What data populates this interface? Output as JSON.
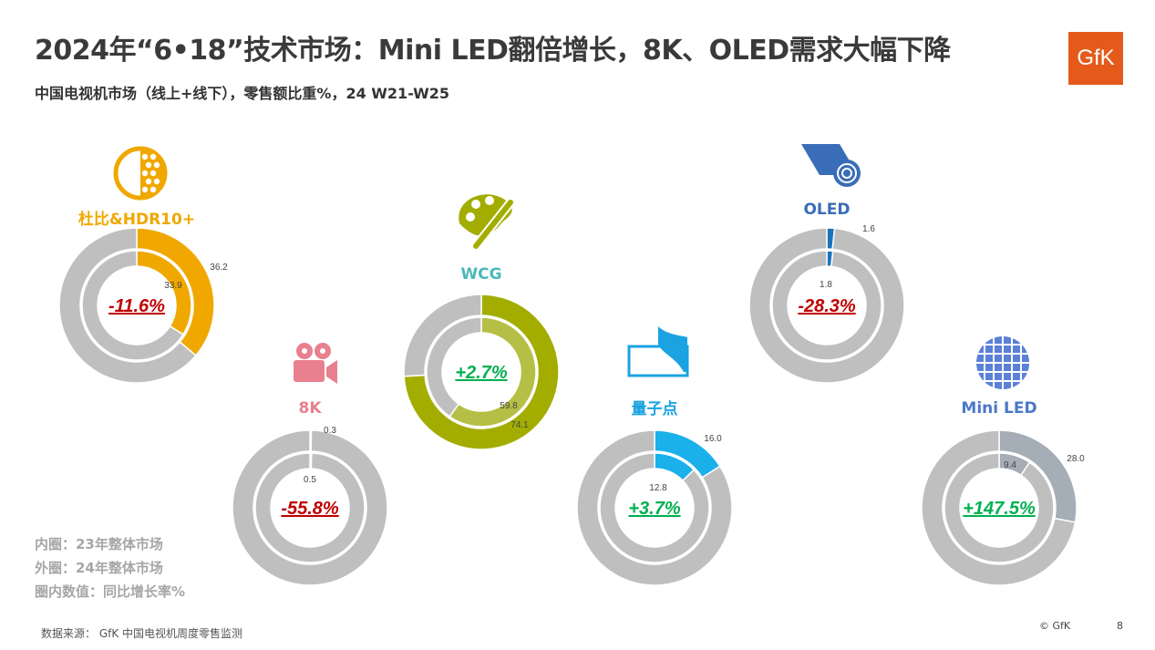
{
  "header": {
    "title": "2024年“6•18”技术市场：Mini LED翻倍增长，8K、OLED需求大幅下降",
    "subtitle": "中国电视机市场（线上+线下），零售额比重%，24 W21-W25",
    "logo": "GfK"
  },
  "legend": {
    "inner": "内圈：23年整体市场",
    "outer": "外圈：24年整体市场",
    "center": "圈内数值：同比增长率%"
  },
  "footer": {
    "source": "数据来源：  GfK 中国电视机周度零售监测",
    "copyright": "© GfK",
    "page": "8"
  },
  "colors": {
    "rest": "#bfbfbf",
    "up": "#00b050",
    "down": "#c00000"
  },
  "chart_data": {
    "type": "pie",
    "subtype": "double-donut",
    "title": "2024年“6•18”技术市场：Mini LED翻倍增长，8K、OLED需求大幅下降",
    "unit": "零售额比重%",
    "series": [
      {
        "name": "杜比&HDR10+",
        "icon": "hdr-icon",
        "inner_2023": 33.9,
        "outer_2024": 36.2,
        "growth": "-11.6%",
        "color": "#f0a800",
        "inner_color": "#f0a800",
        "label_color": "#f0a800",
        "trend": "down"
      },
      {
        "name": "8K",
        "icon": "film-camera-icon",
        "inner_2023": 0.5,
        "outer_2024": 0.3,
        "growth": "-55.8%",
        "color": "#9e9e9e",
        "inner_color": "#9e9e9e",
        "label_color": "#e8808f",
        "trend": "down"
      },
      {
        "name": "WCG",
        "icon": "palette-icon",
        "inner_2023": 59.8,
        "outer_2024": 74.1,
        "growth": "+2.7%",
        "color": "#a3ad00",
        "inner_color": "#b6bf45",
        "label_color": "#4bb8b8",
        "trend": "up"
      },
      {
        "name": "量子点",
        "icon": "curved-screen-icon",
        "inner_2023": 12.8,
        "outer_2024": 16.0,
        "growth": "+3.7%",
        "color": "#1ab0ea",
        "inner_color": "#1ab0ea",
        "label_color": "#1aa3e0",
        "trend": "up"
      },
      {
        "name": "OLED",
        "icon": "roll-screen-icon",
        "inner_2023": 1.8,
        "outer_2024": 1.6,
        "growth": "-28.3%",
        "color": "#1a74bd",
        "inner_color": "#1a74bd",
        "label_color": "#3a6db8",
        "trend": "down"
      },
      {
        "name": "Mini LED",
        "icon": "globe-grid-icon",
        "inner_2023": 9.4,
        "outer_2024": 28.0,
        "growth": "+147.5%",
        "color": "#a5adb6",
        "inner_color": "#a5adb6",
        "label_color": "#4a78c8",
        "trend": "up"
      }
    ]
  }
}
